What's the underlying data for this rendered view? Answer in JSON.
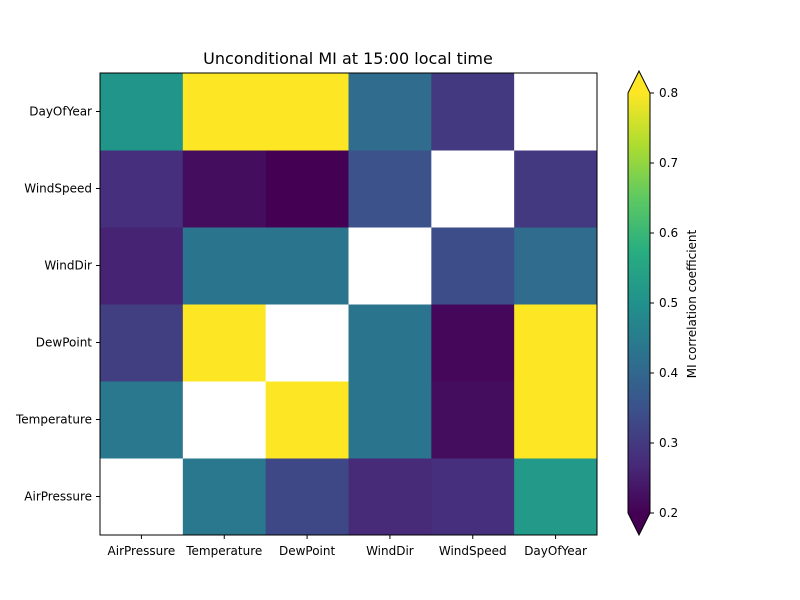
{
  "chart_data": {
    "type": "heatmap",
    "title": "Unconditional MI at 15:00 local time",
    "x_labels": [
      "AirPressure",
      "Temperature",
      "DewPoint",
      "WindDir",
      "WindSpeed",
      "DayOfYear"
    ],
    "y_labels": [
      "AirPressure",
      "Temperature",
      "DewPoint",
      "WindDir",
      "WindSpeed",
      "DayOfYear"
    ],
    "matrix": [
      [
        null,
        0.44,
        0.33,
        0.27,
        0.28,
        0.52
      ],
      [
        0.44,
        null,
        0.8,
        0.43,
        0.22,
        0.8
      ],
      [
        0.31,
        0.8,
        null,
        0.43,
        0.21,
        0.8
      ],
      [
        0.26,
        0.43,
        0.43,
        null,
        0.34,
        0.41
      ],
      [
        0.28,
        0.22,
        0.2,
        0.35,
        null,
        0.3
      ],
      [
        0.51,
        0.8,
        0.8,
        0.41,
        0.3,
        null
      ]
    ],
    "diagonal": "blank",
    "colormap": "viridis",
    "vmin": 0.2,
    "vmax": 0.8,
    "colorbar": {
      "label": "MI correlation coefficient",
      "ticks": [
        "0.2",
        "0.3",
        "0.4",
        "0.5",
        "0.6",
        "0.7",
        "0.8"
      ],
      "extend": "both"
    }
  }
}
